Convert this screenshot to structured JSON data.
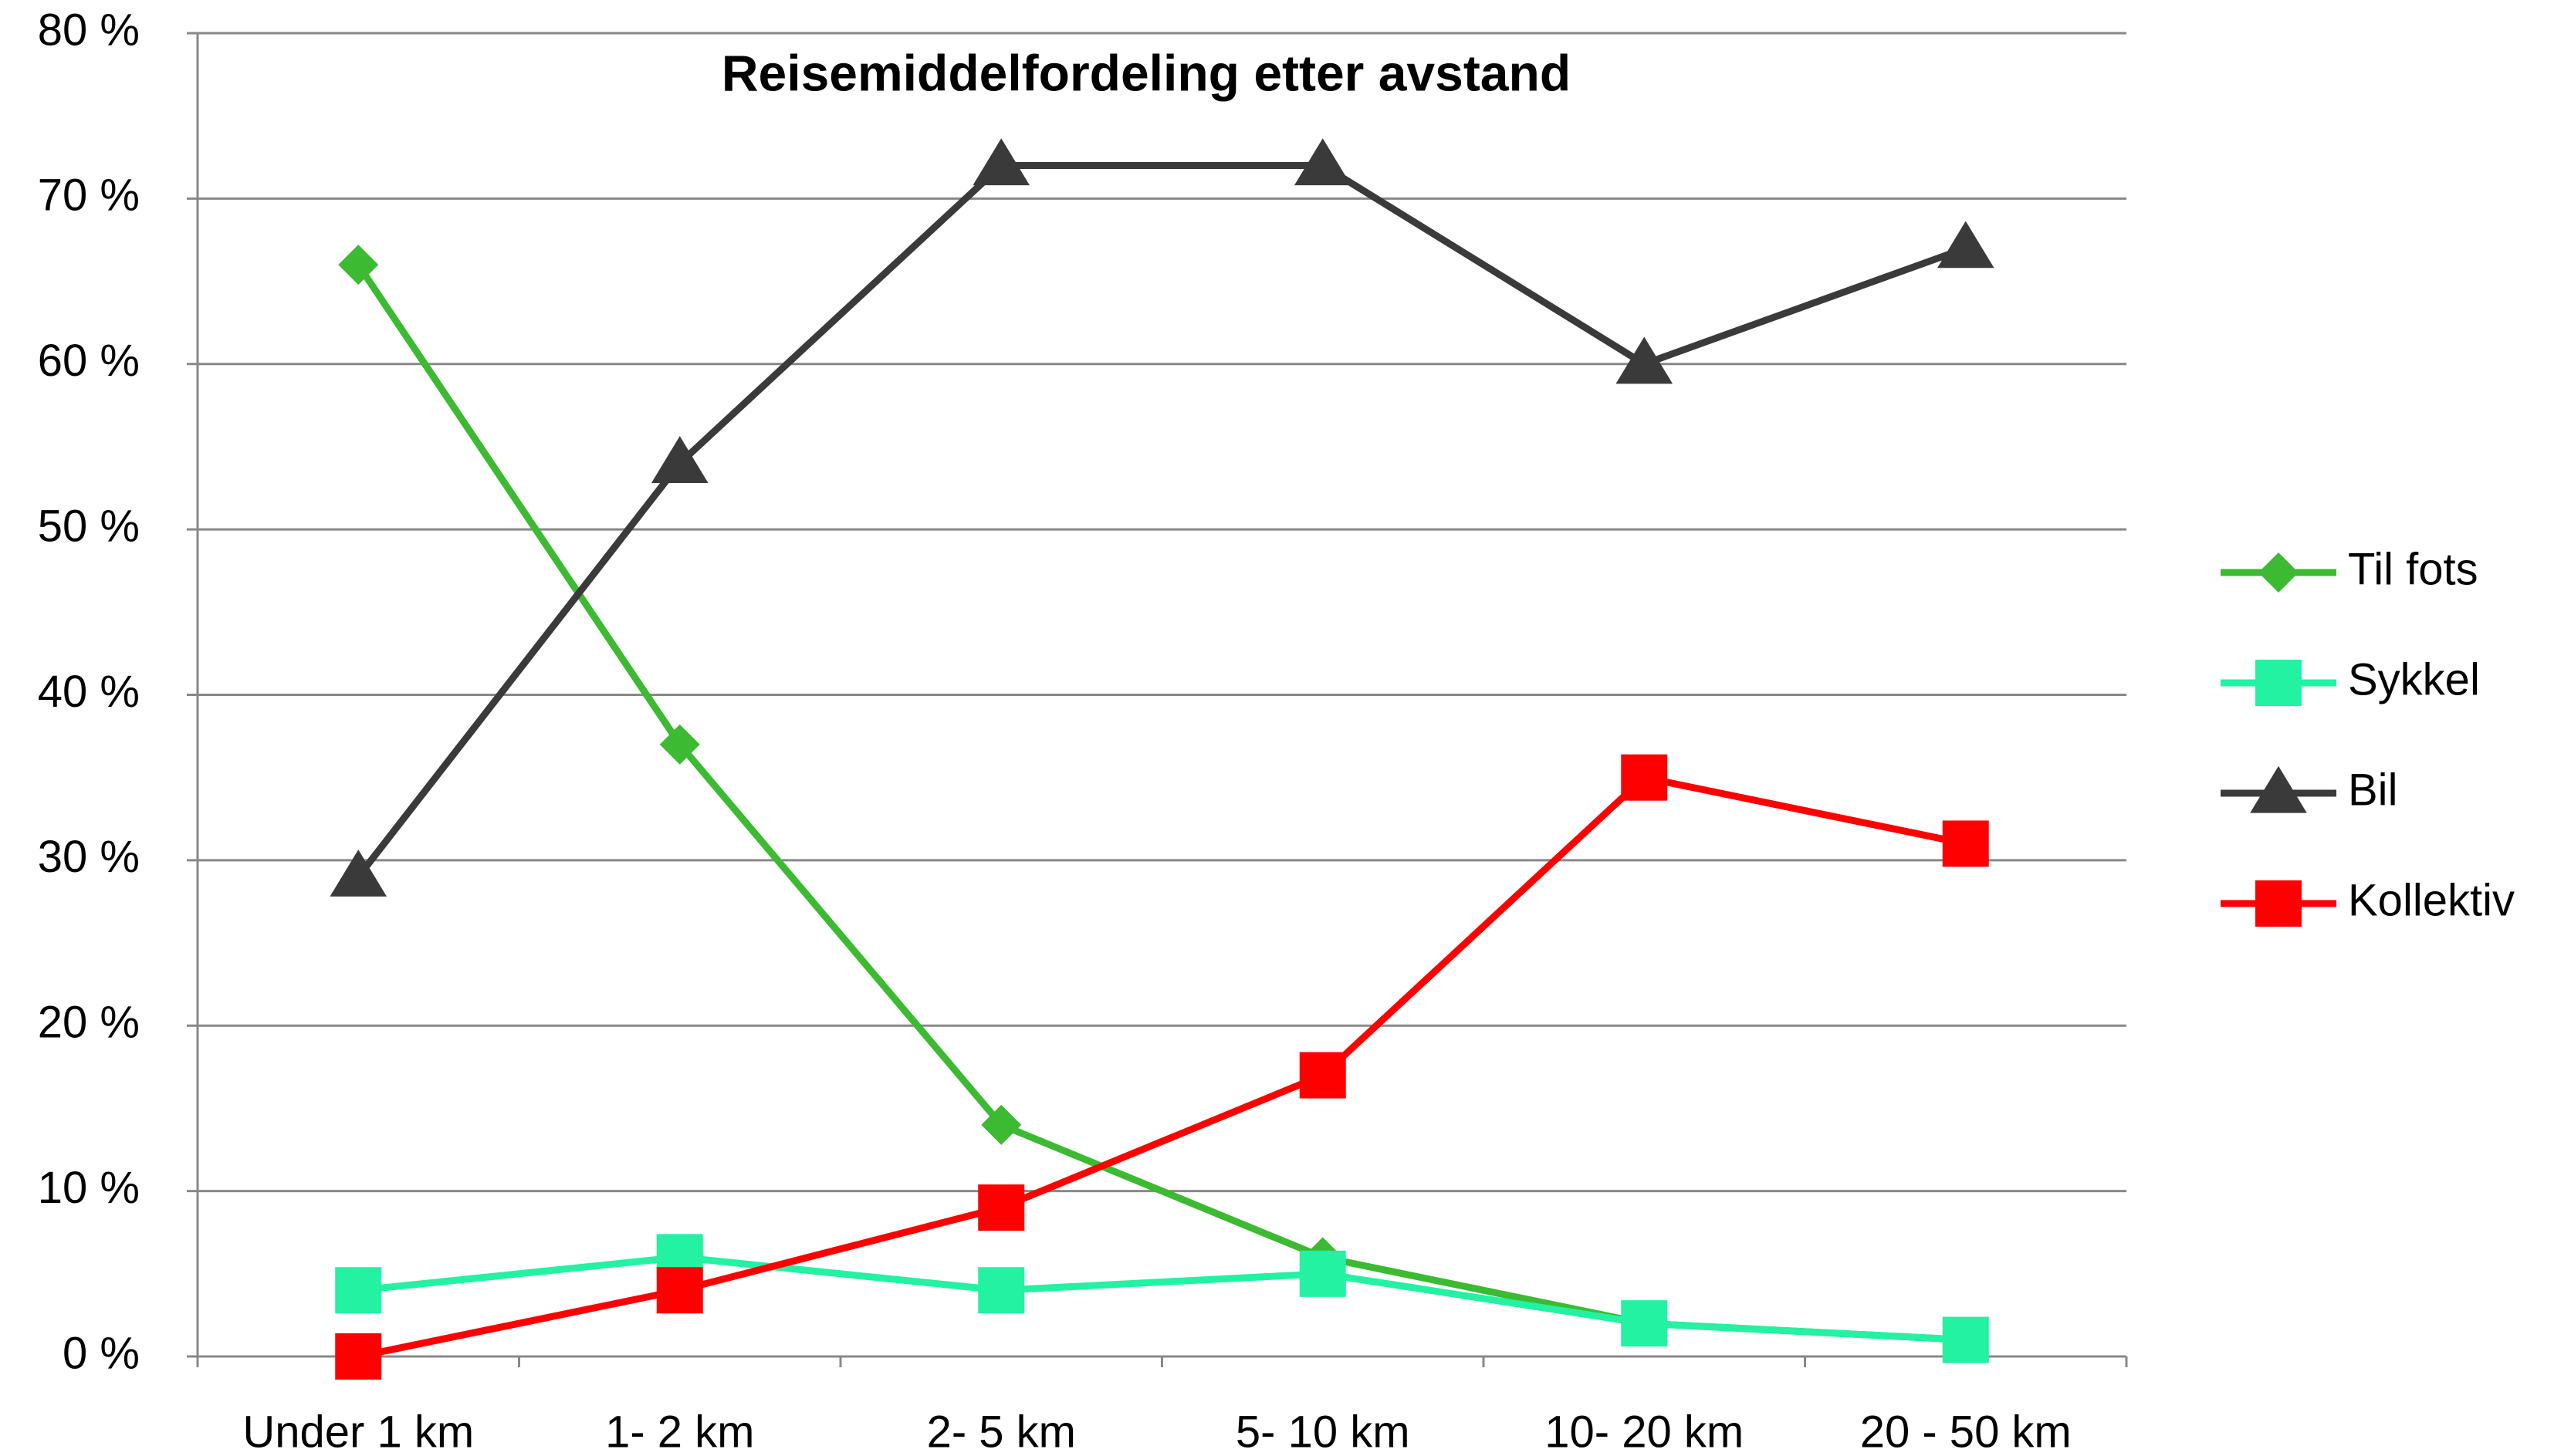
{
  "chart_data": {
    "type": "line",
    "title": "Reisemiddelfordeling etter avstand",
    "categories": [
      "Under 1 km",
      "1- 2 km",
      "2- 5 km",
      "5- 10 km",
      "10- 20 km",
      "20 - 50 km"
    ],
    "series": [
      {
        "name": "Til fots",
        "color": "#3cba32",
        "marker": "diamond",
        "values": [
          66,
          37,
          14,
          6,
          2,
          1
        ]
      },
      {
        "name": "Sykkel",
        "color": "#22f2a2",
        "marker": "square",
        "values": [
          4,
          6,
          4,
          5,
          2,
          1
        ]
      },
      {
        "name": "Bil",
        "color": "#3a3a3a",
        "marker": "triangle",
        "values": [
          29,
          54,
          72,
          72,
          60,
          67
        ]
      },
      {
        "name": "Kollektiv",
        "color": "#ff0000",
        "marker": "square",
        "values": [
          0,
          4,
          9,
          17,
          35,
          31
        ]
      }
    ],
    "ylim": [
      0,
      80
    ],
    "yticks": [
      {
        "value": 0,
        "label": "0 %"
      },
      {
        "value": 10,
        "label": "10 %"
      },
      {
        "value": 20,
        "label": "20 %"
      },
      {
        "value": 30,
        "label": "30 %"
      },
      {
        "value": 40,
        "label": "40 %"
      },
      {
        "value": 50,
        "label": "50 %"
      },
      {
        "value": 60,
        "label": "60 %"
      },
      {
        "value": 70,
        "label": "70 %"
      },
      {
        "value": 80,
        "label": "80 %"
      }
    ],
    "grid": true,
    "legend": "right"
  }
}
